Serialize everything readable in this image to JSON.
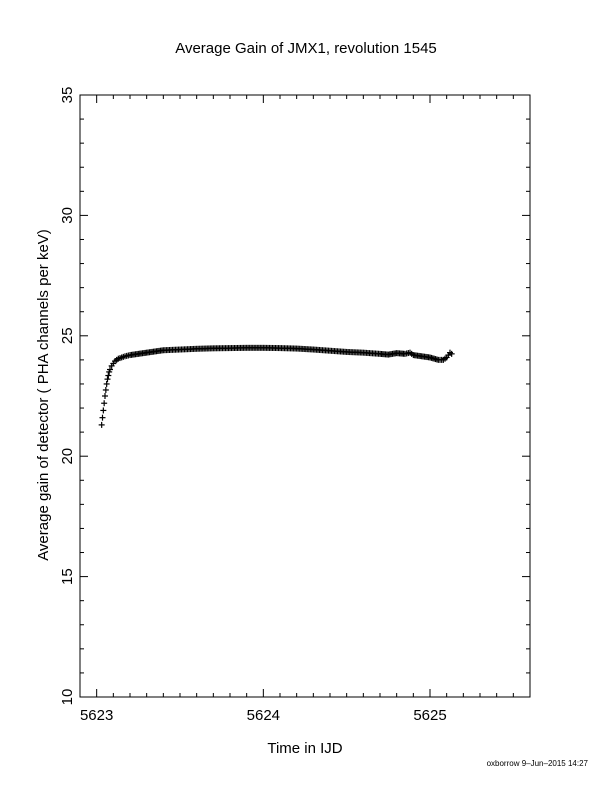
{
  "chart_data": {
    "type": "scatter",
    "title": "Average Gain of JMX1, revolution 1545",
    "xlabel": "Time in IJD",
    "ylabel": "Average gain of detector ( PHA channels per keV)",
    "xlim": [
      5622.9,
      5625.6
    ],
    "ylim": [
      10,
      35
    ],
    "xticks": [
      5623,
      5624,
      5625
    ],
    "yticks": [
      10,
      15,
      20,
      25,
      30,
      35
    ],
    "marker": "plus",
    "grid": false,
    "series": [
      {
        "x": [
          5623.03,
          5623.035,
          5623.04,
          5623.045,
          5623.05,
          5623.055,
          5623.06,
          5623.065,
          5623.07,
          5623.075,
          5623.08,
          5623.09,
          5623.1,
          5623.11,
          5623.12,
          5623.13,
          5623.15,
          5623.17,
          5623.2,
          5623.25,
          5623.3,
          5623.35,
          5623.4,
          5623.5,
          5623.6,
          5623.7,
          5623.8,
          5623.9,
          5624.0,
          5624.1,
          5624.2,
          5624.3,
          5624.4,
          5624.5,
          5624.6,
          5624.7,
          5624.75,
          5624.8,
          5624.85,
          5624.88,
          5624.9,
          5624.95,
          5625.0,
          5625.05,
          5625.08,
          5625.1,
          5625.12,
          5625.13
        ],
        "y": [
          21.3,
          21.6,
          21.9,
          22.2,
          22.5,
          22.75,
          23.0,
          23.2,
          23.35,
          23.5,
          23.6,
          23.75,
          23.85,
          23.95,
          24.0,
          24.05,
          24.1,
          24.15,
          24.2,
          24.25,
          24.3,
          24.35,
          24.4,
          24.43,
          24.46,
          24.48,
          24.49,
          24.5,
          24.5,
          24.49,
          24.47,
          24.43,
          24.38,
          24.33,
          24.3,
          24.25,
          24.22,
          24.28,
          24.25,
          24.3,
          24.2,
          24.15,
          24.1,
          24.0,
          24.0,
          24.1,
          24.3,
          24.25
        ]
      }
    ]
  },
  "footer": {
    "credit": "oxborrow  9–Jun–2015 14:27"
  }
}
